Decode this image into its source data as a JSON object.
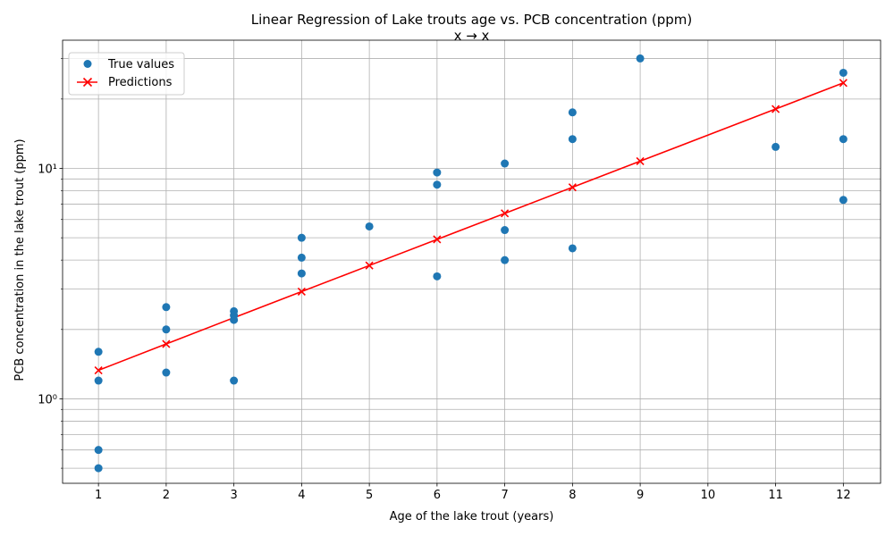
{
  "chart_data": {
    "type": "scatter",
    "title": "Linear Regression of Lake trouts age vs. PCB concentration (ppm)",
    "subtitle": "x → x",
    "xlabel": "Age of the lake trout (years)",
    "ylabel": "PCB concentration in the lake trout (ppm)",
    "xlim": [
      0.47,
      12.55
    ],
    "ylim": [
      0.43,
      36
    ],
    "yscale": "log",
    "x_ticks": [
      1,
      2,
      3,
      4,
      5,
      6,
      7,
      8,
      9,
      10,
      11,
      12
    ],
    "y_major_ticks": [
      1,
      10
    ],
    "y_major_tick_labels": [
      "10⁰",
      "10¹"
    ],
    "y_minor_ticks": [
      0.5,
      0.6,
      0.7,
      0.8,
      0.9,
      2,
      3,
      4,
      5,
      6,
      7,
      8,
      9,
      20,
      30
    ],
    "grid": true,
    "legend_position": "top-left",
    "series": [
      {
        "name": "True values",
        "kind": "scatter",
        "color": "#1f77b4",
        "x": [
          1,
          1,
          1,
          1,
          2,
          2,
          2,
          3,
          3,
          3,
          3,
          4,
          4,
          4,
          5,
          6,
          6,
          6,
          7,
          7,
          7,
          8,
          8,
          8,
          9,
          11,
          12,
          12,
          12
        ],
        "y": [
          1.6,
          1.2,
          0.6,
          0.5,
          2.5,
          2.0,
          1.3,
          2.4,
          2.3,
          2.2,
          1.2,
          5.0,
          4.1,
          3.5,
          5.6,
          9.6,
          8.5,
          3.4,
          10.5,
          5.4,
          4.0,
          17.5,
          13.4,
          4.5,
          30.0,
          12.4,
          26.0,
          13.4,
          7.3
        ]
      },
      {
        "name": "Predictions",
        "kind": "line",
        "color": "#ff0000",
        "x": [
          1,
          2,
          3,
          4,
          5,
          6,
          7,
          8,
          9,
          11,
          12
        ],
        "y": [
          1.33,
          1.73,
          2.25,
          2.92,
          3.79,
          4.92,
          6.38,
          8.28,
          10.75,
          18.1,
          23.5
        ]
      }
    ]
  }
}
